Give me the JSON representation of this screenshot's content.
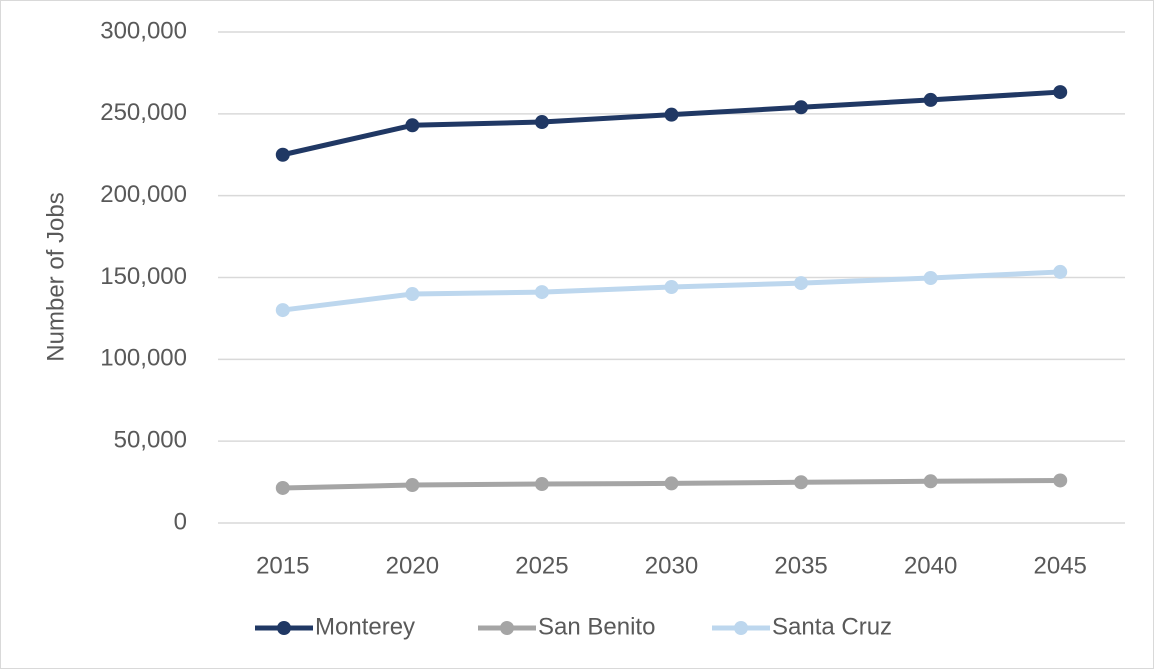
{
  "chart_data": {
    "type": "line",
    "y_label": "Number of Jobs",
    "categories": [
      "2015",
      "2020",
      "2025",
      "2030",
      "2035",
      "2040",
      "2045"
    ],
    "series": [
      {
        "name": "Monterey",
        "color": "#203864",
        "values": [
          225000,
          243000,
          245000,
          249500,
          254000,
          258500,
          263300
        ]
      },
      {
        "name": "San Benito",
        "color": "#a5a5a5",
        "values": [
          21400,
          23200,
          23800,
          24200,
          24900,
          25500,
          26000
        ]
      },
      {
        "name": "Santa Cruz",
        "color": "#bdd7ee",
        "values": [
          130100,
          139900,
          141100,
          144200,
          146600,
          149700,
          153400
        ]
      }
    ],
    "ylim": [
      0,
      300000
    ],
    "yticks": [
      0,
      {
        "value": 50000,
        "label": "50,000"
      },
      {
        "value": 100000,
        "label": "100,000"
      },
      {
        "value": 150000,
        "label": "150,000"
      },
      {
        "value": 200000,
        "label": "200,000"
      },
      {
        "value": 250000,
        "label": "250,000"
      },
      {
        "value": 300000,
        "label": "300,000"
      }
    ],
    "grid": true,
    "legend": "bottom"
  }
}
